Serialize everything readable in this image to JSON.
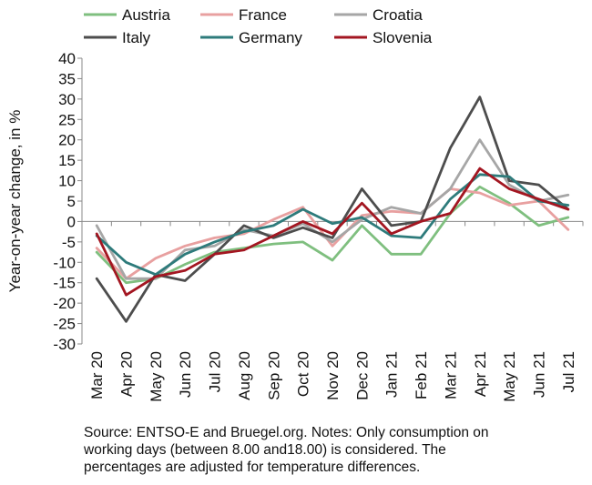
{
  "chart_data": {
    "type": "line",
    "title": "",
    "xlabel": "",
    "ylabel": "Year-on-year change, in %",
    "ylim": [
      -30,
      40
    ],
    "ytick_step": 5,
    "grid": false,
    "legend_placement": "top",
    "categories": [
      "Mar 20",
      "Apr 20",
      "May 20",
      "Jun 20",
      "Jul 20",
      "Aug 20",
      "Sep 20",
      "Oct 20",
      "Nov 20",
      "Dec 20",
      "Jan 21",
      "Feb 21",
      "Mar 21",
      "Apr 21",
      "May 21",
      "Jun 21",
      "Jul 21"
    ],
    "series": [
      {
        "name": "Austria",
        "color": "#7fbf7f",
        "values": [
          -7.5,
          -15,
          -14,
          -10.5,
          -7.5,
          -6.5,
          -5.5,
          -5,
          -9.5,
          -1,
          -8,
          -8,
          2,
          8.5,
          4.5,
          -1,
          1
        ]
      },
      {
        "name": "France",
        "color": "#e8a0a0",
        "values": [
          -6.5,
          -14,
          -9,
          -6,
          -4,
          -3,
          0.5,
          3.5,
          -6,
          1.5,
          2.5,
          2,
          8,
          7,
          4,
          5,
          -2
        ]
      },
      {
        "name": "Croatia",
        "color": "#a6a6a6",
        "values": [
          -1,
          -14,
          -14,
          -7,
          -6,
          -2,
          -3.5,
          -0.5,
          -5,
          0.5,
          3.5,
          2,
          8,
          20,
          9,
          5,
          6.5
        ]
      },
      {
        "name": "Italy",
        "color": "#4d4d4d",
        "values": [
          -14,
          -24.5,
          -13,
          -14.5,
          -8,
          -1,
          -4,
          -1.5,
          -4,
          8,
          -1,
          0,
          18,
          30.5,
          10,
          9,
          3
        ]
      },
      {
        "name": "Germany",
        "color": "#2e7b7b",
        "values": [
          -3.5,
          -10,
          -13,
          -8,
          -5,
          -2.5,
          -1,
          3,
          -0.5,
          1,
          -3.5,
          -4,
          5.5,
          11.5,
          11,
          5,
          4
        ]
      },
      {
        "name": "Slovenia",
        "color": "#a31621",
        "values": [
          -3,
          -18,
          -13.5,
          -12,
          -8,
          -7,
          -3.5,
          0,
          -3,
          4.5,
          -3,
          0,
          2,
          13,
          8,
          5.5,
          3
        ]
      }
    ]
  },
  "note": {
    "line1": "Source: ENTSO-E and Bruegel.org. Notes: Only consumption on",
    "line2": "working days (between 8.00 and18.00) is considered. The",
    "line3": "percentages are adjusted for temperature differences."
  }
}
